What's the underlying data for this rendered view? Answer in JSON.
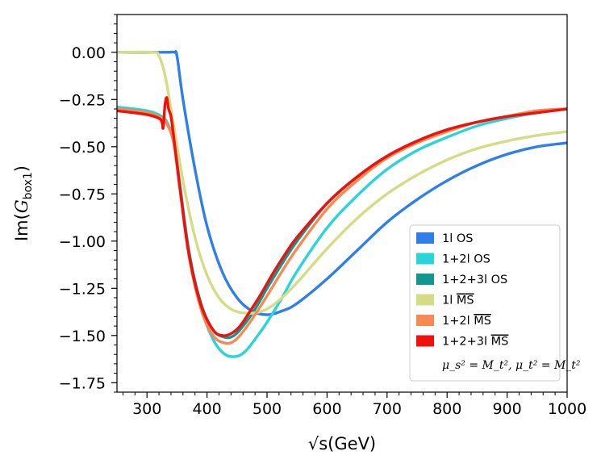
{
  "chart_data": {
    "type": "line",
    "title": "",
    "xlabel": "√s(GeV)",
    "ylabel": "Im(G_box1)",
    "ylabel_main": "Im(",
    "ylabel_sym": "G",
    "ylabel_sub": "box1",
    "ylabel_close": ")",
    "xlim": [
      250,
      1000
    ],
    "ylim": [
      -1.8,
      0.2
    ],
    "xticks": [
      300,
      400,
      500,
      600,
      700,
      800,
      900,
      1000
    ],
    "xtick_labels": [
      "300",
      "400",
      "500",
      "600",
      "700",
      "800",
      "900",
      "1000"
    ],
    "yticks": [
      0.0,
      -0.25,
      -0.5,
      -0.75,
      -1.0,
      -1.25,
      -1.5,
      -1.75
    ],
    "ytick_labels": [
      "0.00",
      "−0.25",
      "−0.50",
      "−0.75",
      "−1.00",
      "−1.25",
      "−1.50",
      "−1.75"
    ],
    "legend_position": "lower-right",
    "legend_note": "μ_s² = M_t², μ_t² = M_t²",
    "series": [
      {
        "name": "1l OS",
        "label": "1l OS",
        "color": "#2f7fe8",
        "x": [
          250,
          330,
          345,
          350,
          360,
          380,
          400,
          425,
          450,
          475,
          500,
          525,
          550,
          600,
          650,
          700,
          750,
          800,
          850,
          900,
          950,
          1000
        ],
        "y": [
          0.0,
          0.0,
          0.0,
          -0.02,
          -0.25,
          -0.62,
          -0.92,
          -1.16,
          -1.3,
          -1.37,
          -1.39,
          -1.37,
          -1.33,
          -1.2,
          -1.05,
          -0.9,
          -0.78,
          -0.68,
          -0.6,
          -0.54,
          -0.5,
          -0.48
        ]
      },
      {
        "name": "1+2l OS",
        "label": "1+2l OS",
        "color": "#2ad4d8",
        "x": [
          250,
          300,
          325,
          335,
          345,
          355,
          370,
          390,
          410,
          430,
          450,
          465,
          480,
          500,
          525,
          550,
          600,
          650,
          700,
          750,
          800,
          850,
          900,
          950,
          1000
        ],
        "y": [
          -0.29,
          -0.31,
          -0.34,
          -0.38,
          -0.47,
          -0.7,
          -1.05,
          -1.35,
          -1.52,
          -1.6,
          -1.61,
          -1.58,
          -1.52,
          -1.43,
          -1.3,
          -1.16,
          -0.93,
          -0.76,
          -0.62,
          -0.52,
          -0.45,
          -0.39,
          -0.35,
          -0.32,
          -0.3
        ]
      },
      {
        "name": "1+2+3l OS",
        "label": "1+2+3l OS",
        "color": "#0f9790",
        "x": [
          250,
          300,
          325,
          335,
          345,
          355,
          370,
          390,
          410,
          430,
          445,
          460,
          480,
          500,
          525,
          550,
          600,
          650,
          700,
          750,
          800,
          850,
          900,
          950,
          1000
        ],
        "y": [
          -0.3,
          -0.32,
          -0.35,
          -0.39,
          -0.48,
          -0.72,
          -1.06,
          -1.33,
          -1.47,
          -1.51,
          -1.5,
          -1.45,
          -1.36,
          -1.25,
          -1.12,
          -1.0,
          -0.8,
          -0.66,
          -0.55,
          -0.47,
          -0.41,
          -0.37,
          -0.34,
          -0.31,
          -0.3
        ]
      },
      {
        "name": "1l MS-bar",
        "label": "1l ",
        "label_bar": "MS",
        "color": "#d4dd86",
        "x": [
          250,
          310,
          320,
          330,
          340,
          360,
          380,
          400,
          420,
          440,
          460,
          480,
          500,
          525,
          550,
          600,
          650,
          700,
          750,
          800,
          850,
          900,
          950,
          1000
        ],
        "y": [
          0.0,
          0.0,
          -0.02,
          -0.12,
          -0.3,
          -0.68,
          -0.98,
          -1.18,
          -1.3,
          -1.36,
          -1.38,
          -1.38,
          -1.36,
          -1.3,
          -1.22,
          -1.04,
          -0.88,
          -0.75,
          -0.65,
          -0.57,
          -0.51,
          -0.47,
          -0.44,
          -0.42
        ]
      },
      {
        "name": "1+2l MS-bar",
        "label": "1+2l ",
        "label_bar": "MS",
        "color": "#f78a52",
        "x": [
          250,
          300,
          325,
          335,
          345,
          355,
          370,
          390,
          410,
          430,
          445,
          460,
          480,
          500,
          525,
          550,
          600,
          650,
          700,
          750,
          800,
          850,
          900,
          950,
          1000
        ],
        "y": [
          -0.3,
          -0.32,
          -0.35,
          -0.39,
          -0.49,
          -0.73,
          -1.08,
          -1.36,
          -1.5,
          -1.54,
          -1.53,
          -1.48,
          -1.39,
          -1.29,
          -1.16,
          -1.04,
          -0.83,
          -0.68,
          -0.56,
          -0.48,
          -0.42,
          -0.37,
          -0.34,
          -0.31,
          -0.3
        ]
      },
      {
        "name": "1+2+3l MS-bar",
        "label": "1+2+3l ",
        "label_bar": "MS",
        "color": "#f0100c",
        "x": [
          250,
          300,
          320,
          325,
          327,
          330,
          333,
          336,
          340,
          345,
          355,
          370,
          390,
          410,
          425,
          440,
          455,
          470,
          490,
          510,
          530,
          550,
          600,
          650,
          700,
          750,
          800,
          850,
          900,
          950,
          1000
        ],
        "y": [
          -0.31,
          -0.33,
          -0.35,
          -0.37,
          -0.4,
          -0.28,
          -0.24,
          -0.3,
          -0.34,
          -0.46,
          -0.72,
          -1.07,
          -1.34,
          -1.47,
          -1.5,
          -1.49,
          -1.45,
          -1.38,
          -1.28,
          -1.17,
          -1.07,
          -0.98,
          -0.8,
          -0.66,
          -0.55,
          -0.47,
          -0.41,
          -0.37,
          -0.34,
          -0.32,
          -0.3
        ]
      }
    ]
  }
}
